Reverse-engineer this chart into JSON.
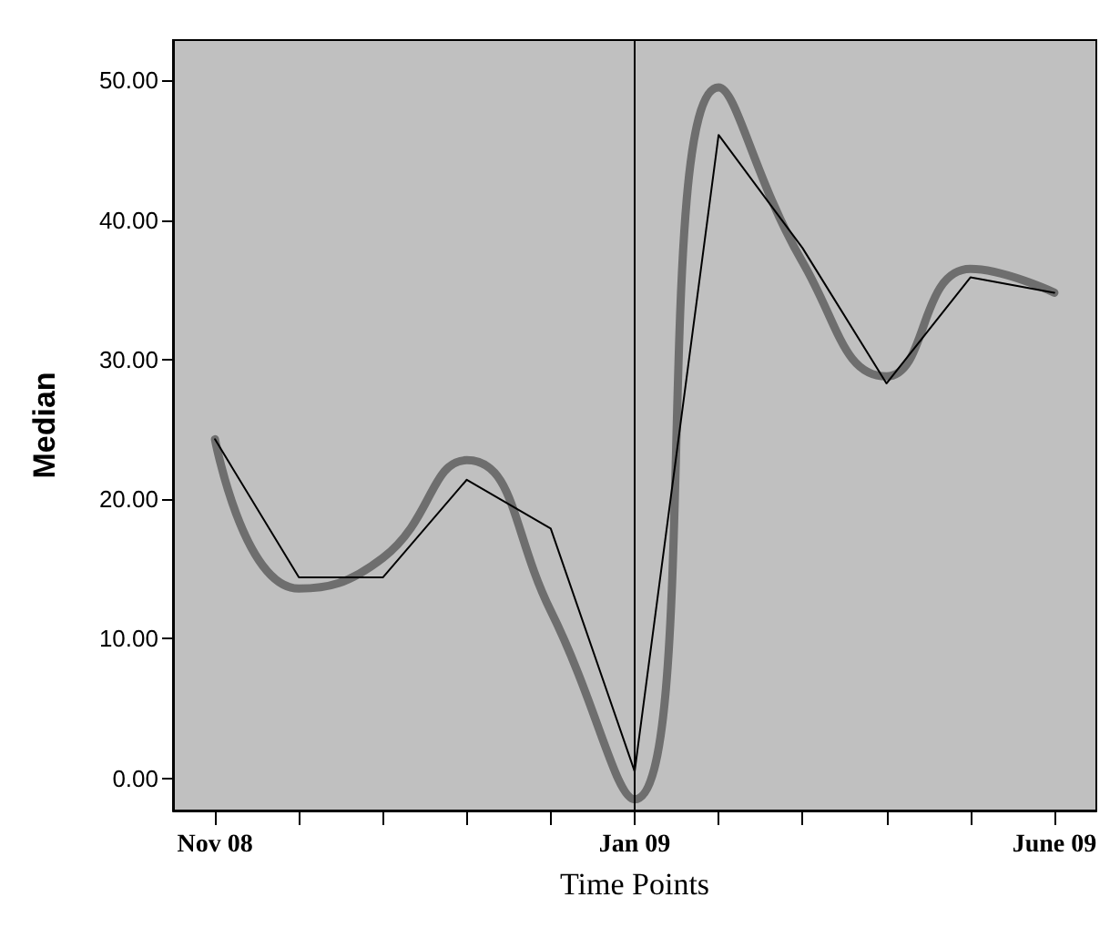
{
  "chart_data": {
    "type": "line",
    "xlabel": "Time Points",
    "ylabel": "Median",
    "categories": [
      "Nov 08",
      null,
      null,
      null,
      null,
      "Jan 09",
      null,
      null,
      null,
      null,
      "June 09"
    ],
    "ylim": [
      -2.3,
      52.9
    ],
    "yticks": [
      {
        "value": 0,
        "label": "0.00"
      },
      {
        "value": 10,
        "label": "10.00"
      },
      {
        "value": 20,
        "label": "20.00"
      },
      {
        "value": 30,
        "label": "30.00"
      },
      {
        "value": 40,
        "label": "40.00"
      },
      {
        "value": 50,
        "label": "50.00"
      }
    ],
    "series": [
      {
        "color": "#6e6e6e",
        "values": [
          24.3,
          13.6,
          15.8,
          22.8,
          12,
          -1.5,
          49.5,
          37,
          28.8,
          36.5,
          34.8
        ]
      },
      {
        "color": "#000000",
        "values": [
          24.3,
          14.4,
          14.4,
          21.4,
          17.9,
          0.5,
          46.1,
          38,
          28.3,
          35.9,
          34.8
        ]
      }
    ],
    "ref_lines": [
      {
        "axis": "x",
        "value": "Jan 09",
        "color": "#000000"
      }
    ],
    "marker": "none",
    "line_style": "solid"
  }
}
